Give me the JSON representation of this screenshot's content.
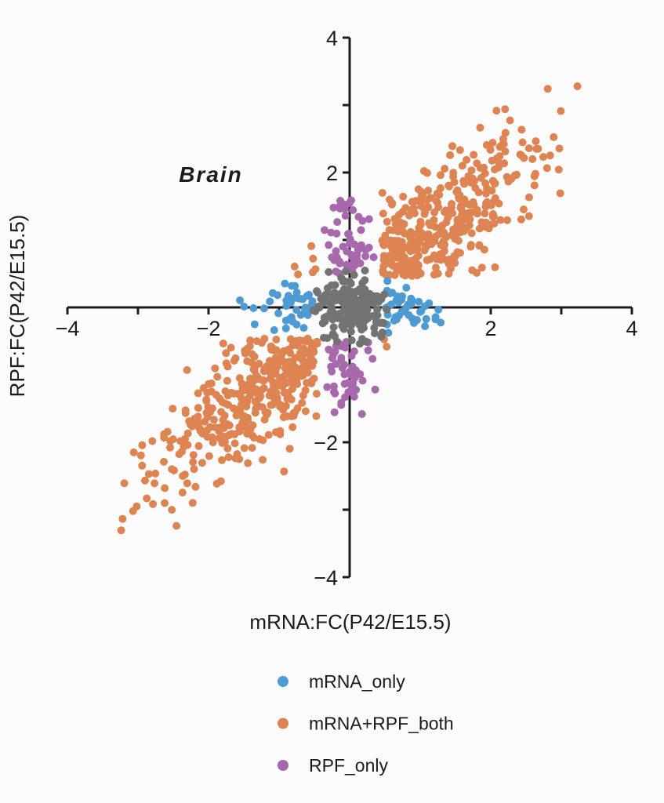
{
  "page": {
    "background": "#fcfcfc"
  },
  "chart_data": {
    "type": "scatter",
    "title": "Brain",
    "xlabel": "mRNA:FC(P42/E15.5)",
    "ylabel": "RPF:FC(P42/E15.5)",
    "xlim": [
      -4,
      4
    ],
    "ylim": [
      -4,
      4
    ],
    "grid": false,
    "axes_style": "cross-at-origin",
    "axis_color": "#1b1b1b",
    "tick_values": [
      -4,
      -3,
      -2,
      -1,
      1,
      2,
      3,
      4
    ],
    "x_tick_labels": [
      {
        "v": -4,
        "t": "−4"
      },
      {
        "v": -2,
        "t": "−2"
      },
      {
        "v": 2,
        "t": "2"
      },
      {
        "v": 4,
        "t": "4"
      }
    ],
    "y_tick_labels": [
      {
        "v": -4,
        "t": "−4"
      },
      {
        "v": -2,
        "t": "−2"
      },
      {
        "v": 2,
        "t": "2"
      },
      {
        "v": 4,
        "t": "4"
      }
    ],
    "point_radius_px": 5,
    "seed": 11,
    "legend": {
      "position": "bottom-center",
      "items": [
        {
          "label": "mRNA_only",
          "color": "#4E9BD3"
        },
        {
          "label": "mRNA+RPF_both",
          "color": "#DE8452"
        },
        {
          "label": "RPF_only",
          "color": "#A768AC"
        }
      ]
    },
    "series": [
      {
        "name": "mRNA+RPF_both",
        "color": "#DE8452",
        "n": 760,
        "summary": "both mRNA and RPF changed; strongly correlated diagonal cloud in quadrants I and III, x from -3.1 to 3.2, y from -3.4 to 3.3",
        "gen": {
          "kind": "diagonal",
          "scale": 1.22,
          "noise_x": 0.28,
          "noise_y": 0.42,
          "slope": 0.92,
          "min_abs": 0.46,
          "x_abs_max": 3.3,
          "y_max": 3.3,
          "y_min": -3.5
        }
      },
      {
        "name": "mRNA_only",
        "color": "#4E9BD3",
        "n": 88,
        "summary": "horizontal band along x-axis, |x| 0.5 to ~1.7, |y| < 0.4",
        "gen": {
          "kind": "band_x",
          "offset": 0.5,
          "tail": 0.45,
          "abs_max": 2.1,
          "perp_sigma": 0.19,
          "perp_max": 0.4,
          "pos_frac": 0.55
        }
      },
      {
        "name": "RPF_only",
        "color": "#A768AC",
        "n": 100,
        "summary": "vertical band along y-axis, |x| < 0.4, y 0.5 to 2.05 above and -0.5 to -1.6 below",
        "gen": {
          "kind": "band_y",
          "offset": 0.5,
          "tail": 0.6,
          "pos_max": 2.06,
          "neg_max": 1.62,
          "perp_sigma": 0.17,
          "perp_max": 0.4,
          "pos_frac": 0.56
        }
      },
      {
        "name": "center_gray_unlabeled",
        "color": "#737373",
        "n": 175,
        "summary": "unchanged genes; dense gray blob at origin, |x| and |y| < 0.55",
        "gen": {
          "kind": "blob",
          "sigma": 0.26,
          "abs_max": 0.55
        }
      }
    ]
  }
}
